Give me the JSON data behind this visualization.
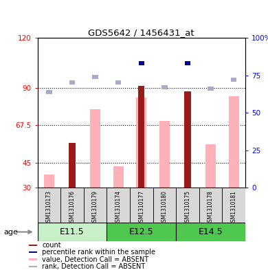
{
  "title": "GDS5642 / 1456431_at",
  "samples": [
    "GSM1310173",
    "GSM1310176",
    "GSM1310179",
    "GSM1310174",
    "GSM1310177",
    "GSM1310180",
    "GSM1310175",
    "GSM1310178",
    "GSM1310181"
  ],
  "ylim_left": [
    30,
    120
  ],
  "ylim_right": [
    0,
    100
  ],
  "yticks_left": [
    30,
    45,
    67.5,
    90,
    120
  ],
  "ytick_labels_left": [
    "30",
    "45",
    "67.5",
    "90",
    "120"
  ],
  "yticks_right": [
    0,
    25,
    50,
    75,
    100
  ],
  "ytick_labels_right": [
    "0",
    "25",
    "50",
    "75",
    "100%"
  ],
  "hlines": [
    45,
    67.5,
    90
  ],
  "count_values": [
    0,
    57,
    0,
    0,
    91,
    0,
    88,
    0,
    0
  ],
  "count_rank_vals": [
    0,
    0,
    0,
    0,
    83,
    0,
    83,
    0,
    0
  ],
  "pink_bar_values": [
    38,
    0,
    77,
    43,
    84,
    70,
    0,
    56,
    85
  ],
  "blue_sq_values": [
    64,
    70,
    74,
    70,
    0,
    67,
    0,
    66,
    72
  ],
  "count_color": "#9B1B1B",
  "rank_color": "#00008B",
  "pink_color": "#FFB0B8",
  "blue_color": "#AAAACC",
  "group_info": [
    [
      0,
      3,
      "E11.5",
      "#c8f0c8"
    ],
    [
      3,
      6,
      "E12.5",
      "#50c850"
    ],
    [
      6,
      9,
      "E14.5",
      "#50c850"
    ]
  ],
  "legend_items": [
    {
      "color": "#9B1B1B",
      "label": "count"
    },
    {
      "color": "#00008B",
      "label": "percentile rank within the sample"
    },
    {
      "color": "#FFB0B8",
      "label": "value, Detection Call = ABSENT"
    },
    {
      "color": "#AAAACC",
      "label": "rank, Detection Call = ABSENT"
    }
  ]
}
